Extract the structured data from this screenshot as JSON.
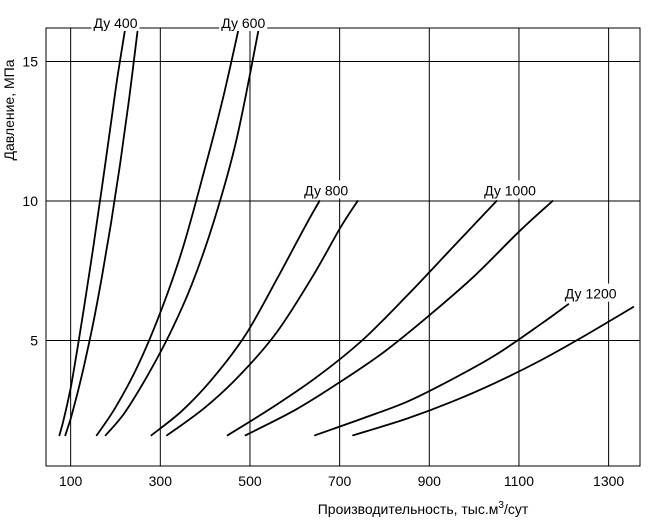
{
  "chart_data": {
    "type": "line",
    "title": "",
    "xlabel": "Производительность, тыс.м",
    "xlabel_sup": "3",
    "xlabel_suffix": "/сут",
    "ylabel": "Давление, МПа",
    "xlim": [
      45,
      1370
    ],
    "ylim": [
      0.5,
      16.2
    ],
    "x_ticks": [
      100,
      300,
      500,
      700,
      900,
      1100,
      1300
    ],
    "y_ticks": [
      5,
      10,
      15
    ],
    "grid": true,
    "legend": "none",
    "colors": {
      "line": "#000000",
      "grid": "#000000",
      "background": "#ffffff"
    },
    "series": [
      {
        "name": "Ду 400",
        "curves": [
          {
            "x": [
              75,
              85,
              100,
              115,
              130,
              150,
              170,
              190,
              205,
              222
            ],
            "y": [
              1.6,
              2.2,
              3.3,
              4.7,
              6.2,
              8.3,
              10.5,
              12.8,
              14.5,
              16.2
            ]
          },
          {
            "x": [
              88,
              100,
              115,
              130,
              150,
              170,
              190,
              210,
              230,
              250
            ],
            "y": [
              1.6,
              2.2,
              3.1,
              4.1,
              5.6,
              7.3,
              9.2,
              11.3,
              13.6,
              16.2
            ]
          }
        ]
      },
      {
        "name": "Ду 600",
        "curves": [
          {
            "x": [
              158,
              200,
              250,
              300,
              350,
              400,
              440,
              475
            ],
            "y": [
              1.6,
              2.6,
              4.1,
              6.0,
              8.3,
              11.2,
              13.7,
              16.2
            ]
          },
          {
            "x": [
              178,
              220,
              270,
              320,
              370,
              420,
              470,
              520
            ],
            "y": [
              1.6,
              2.4,
              3.7,
              5.2,
              7.0,
              9.3,
              12.2,
              16.2
            ]
          }
        ]
      },
      {
        "name": "Ду 800",
        "curves": [
          {
            "x": [
              280,
              350,
              420,
              490,
              560,
              620,
              655
            ],
            "y": [
              1.6,
              2.5,
              3.7,
              5.2,
              7.2,
              9.0,
              10.0
            ]
          },
          {
            "x": [
              315,
              400,
              480,
              560,
              640,
              700,
              740
            ],
            "y": [
              1.6,
              2.6,
              3.8,
              5.3,
              7.3,
              9.0,
              10.0
            ]
          }
        ]
      },
      {
        "name": "Ду 1000",
        "curves": [
          {
            "x": [
              450,
              550,
              650,
              750,
              850,
              950,
              1050
            ],
            "y": [
              1.6,
              2.6,
              3.7,
              5.0,
              6.6,
              8.3,
              10.0
            ]
          },
          {
            "x": [
              490,
              600,
              700,
              800,
              900,
              1000,
              1100,
              1175
            ],
            "y": [
              1.6,
              2.5,
              3.5,
              4.6,
              5.9,
              7.3,
              8.9,
              10.0
            ]
          }
        ]
      },
      {
        "name": "Ду 1200",
        "curves": [
          {
            "x": [
              645,
              750,
              850,
              950,
              1050,
              1150,
              1210
            ],
            "y": [
              1.6,
              2.2,
              2.8,
              3.6,
              4.5,
              5.6,
              6.3
            ]
          },
          {
            "x": [
              730,
              850,
              950,
              1050,
              1150,
              1250,
              1355
            ],
            "y": [
              1.6,
              2.2,
              2.8,
              3.5,
              4.3,
              5.2,
              6.2
            ]
          }
        ]
      }
    ],
    "annotations": [
      {
        "text": "Ду 400",
        "x": 200,
        "y": 16.2
      },
      {
        "text": "Ду 600",
        "x": 485,
        "y": 16.2
      },
      {
        "text": "Ду 800",
        "x": 670,
        "y": 10.2
      },
      {
        "text": "Ду 1000",
        "x": 1080,
        "y": 10.2
      },
      {
        "text": "Ду 1200",
        "x": 1260,
        "y": 6.5
      }
    ]
  }
}
